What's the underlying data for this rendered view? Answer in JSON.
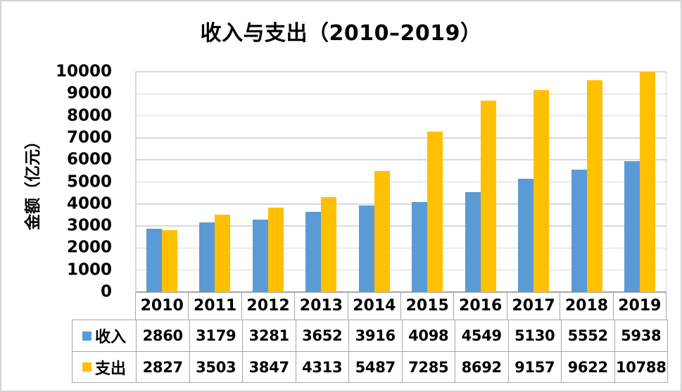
{
  "chart_data": {
    "type": "bar",
    "title": "收入与支出（2010–2019）",
    "xlabel": "",
    "ylabel": "金额（亿元）",
    "categories": [
      "2010",
      "2011",
      "2012",
      "2013",
      "2014",
      "2015",
      "2016",
      "2017",
      "2018",
      "2019"
    ],
    "series": [
      {
        "name": "收入",
        "color": "#5B9BD5",
        "values": [
          2860,
          3179,
          3281,
          3652,
          3916,
          4098,
          4549,
          5130,
          5552,
          5938
        ]
      },
      {
        "name": "支出",
        "color": "#FFC000",
        "values": [
          2827,
          3503,
          3847,
          4313,
          5487,
          7285,
          8692,
          9157,
          9622,
          10788
        ]
      }
    ],
    "ylim": [
      0,
      10000
    ],
    "yticks": [
      0,
      1000,
      2000,
      3000,
      4000,
      5000,
      6000,
      7000,
      8000,
      9000,
      10000
    ],
    "grid": true,
    "legend_position": "data-table-left",
    "data_table_shown": true
  },
  "colors": {
    "background": "#ffffff",
    "frame_border": "#d3d3d3",
    "gridline": "#d9d9d9",
    "table_border": "#a6a6a6",
    "text": "#000000",
    "series_income": "#5B9BD5",
    "series_expense": "#FFC000"
  }
}
